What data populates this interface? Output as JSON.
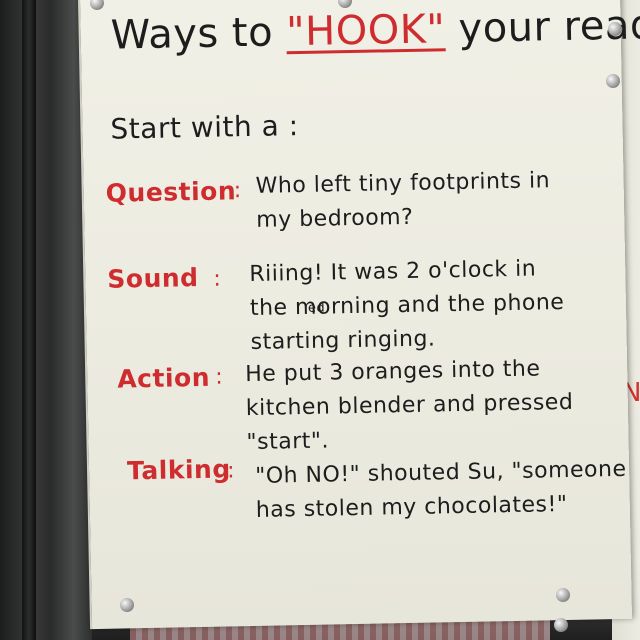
{
  "poster": {
    "title_before": "Ways to ",
    "title_hook": "\"HOOK\"",
    "title_after": " your readers",
    "intro": "Start with a :",
    "items": [
      {
        "label": "Question",
        "lines": [
          "Who left tiny footprints in",
          "my bedroom?"
        ]
      },
      {
        "label": "Sound",
        "lines": [
          "Riiing! It was 2 o'clock in",
          "the morning and the phone",
          "starting ringing."
        ]
      },
      {
        "label": "Action",
        "lines": [
          "He put 3 oranges into the",
          "kitchen blender and pressed",
          "\"start\"."
        ]
      },
      {
        "label": "Talking",
        "lines": [
          "\"Oh NO!\" shouted Su, \"someone",
          "has stolen my chocolates!\""
        ]
      }
    ],
    "correction": "ed"
  },
  "colors": {
    "marker_red": "#cf2c30",
    "marker_black": "#1d1d1d",
    "paper": "#efeee4"
  }
}
